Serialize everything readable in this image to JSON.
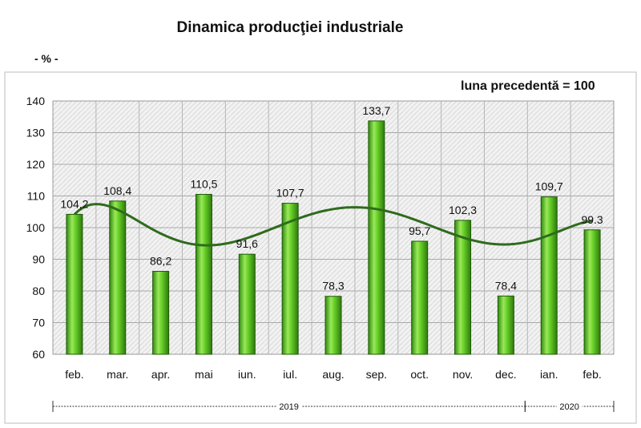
{
  "chart_data": {
    "type": "bar",
    "title": "Dinamica producţiei industriale",
    "unit_label": "- % -",
    "note": "luna precedentă = 100",
    "ylim": [
      60,
      140
    ],
    "yticks": [
      60,
      70,
      80,
      90,
      100,
      110,
      120,
      130,
      140
    ],
    "categories": [
      "feb.",
      "mar.",
      "apr.",
      "mai",
      "iun.",
      "iul.",
      "aug.",
      "sep.",
      "oct.",
      "nov.",
      "dec.",
      "ian.",
      "feb."
    ],
    "values": [
      104.2,
      108.4,
      86.2,
      110.5,
      91.6,
      107.7,
      78.3,
      133.7,
      95.7,
      102.3,
      78.4,
      109.7,
      99.3
    ],
    "value_labels": [
      "104,2",
      "108,4",
      "86,2",
      "110,5",
      "91,6",
      "107,7",
      "78,3",
      "133,7",
      "95,7",
      "102,3",
      "78,4",
      "109,7",
      "99.3"
    ],
    "trendline": "polynomial",
    "grid": true,
    "year_groups": [
      {
        "label": "2019",
        "start": 0,
        "end": 10
      },
      {
        "label": "2020",
        "start": 11,
        "end": 12
      }
    ],
    "colors": {
      "bar": "#5cc21f",
      "bar_dark": "#2d7a0c",
      "bar_light": "#b6f27a",
      "trend": "#2f6b1d",
      "plot_bg": "#ececec"
    }
  }
}
